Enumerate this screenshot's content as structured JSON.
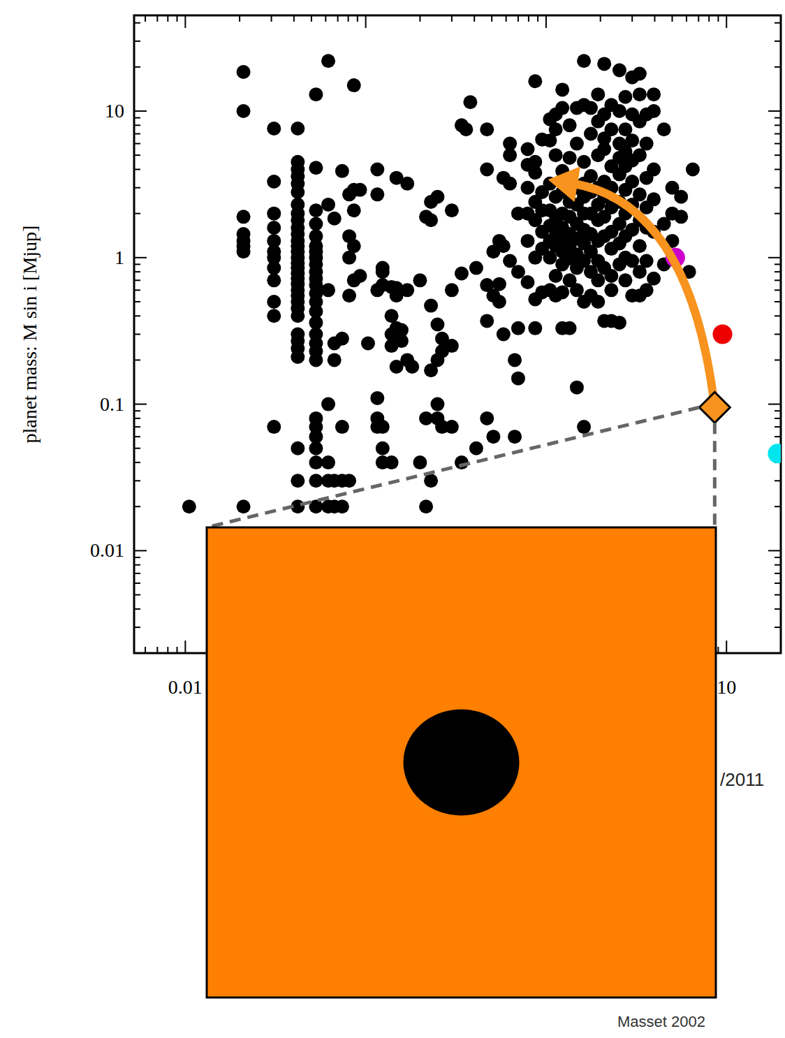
{
  "chart_data": {
    "type": "scatter",
    "y_label": "planet mass: M sin i [Mjup]",
    "log": true,
    "grid": false,
    "xlim": [
      0.0052,
      20
    ],
    "ylim": [
      0.002,
      45
    ],
    "xticks": [
      0.01,
      10
    ],
    "yticks": [
      0.01,
      0.1,
      1,
      10
    ],
    "series": [
      {
        "color": "#000000",
        "marker": "dot",
        "x": [
          0.0105,
          0.021,
          0.021,
          0.021,
          0.021,
          0.021,
          0.021,
          0.021,
          0.021,
          0.031,
          0.031,
          0.031,
          0.031,
          0.031,
          0.031,
          0.031,
          0.031,
          0.031,
          0.031,
          0.031,
          0.031,
          0.042,
          0.042,
          0.042,
          0.042,
          0.042,
          0.042,
          0.042,
          0.042,
          0.042,
          0.042,
          0.042,
          0.042,
          0.042,
          0.042,
          0.042,
          0.042,
          0.042,
          0.042,
          0.042,
          0.042,
          0.042,
          0.042,
          0.042,
          0.042,
          0.042,
          0.042,
          0.042,
          0.042,
          0.042,
          0.042,
          0.042,
          0.042,
          0.053,
          0.053,
          0.053,
          0.053,
          0.053,
          0.053,
          0.053,
          0.053,
          0.053,
          0.053,
          0.053,
          0.053,
          0.053,
          0.053,
          0.053,
          0.053,
          0.053,
          0.053,
          0.053,
          0.053,
          0.053,
          0.053,
          0.053,
          0.053,
          0.053,
          0.053,
          0.053,
          0.062,
          0.062,
          0.062,
          0.062,
          0.062,
          0.062,
          0.062,
          0.067,
          0.067,
          0.067,
          0.067,
          0.067,
          0.074,
          0.074,
          0.074,
          0.074,
          0.074,
          0.081,
          0.081,
          0.081,
          0.081,
          0.081,
          0.086,
          0.086,
          0.086,
          0.086,
          0.086,
          0.093,
          0.093,
          0.103,
          0.116,
          0.116,
          0.116,
          0.116,
          0.116,
          0.116,
          0.124,
          0.124,
          0.124,
          0.124,
          0.124,
          0.124,
          0.139,
          0.139,
          0.139,
          0.139,
          0.139,
          0.148,
          0.148,
          0.148,
          0.148,
          0.148,
          0.158,
          0.158,
          0.17,
          0.17,
          0.17,
          0.181,
          0.2,
          0.2,
          0.216,
          0.216,
          0.216,
          0.23,
          0.23,
          0.23,
          0.23,
          0.23,
          0.25,
          0.25,
          0.25,
          0.25,
          0.25,
          0.265,
          0.265,
          0.265,
          0.3,
          0.3,
          0.3,
          0.3,
          0.34,
          0.34,
          0.34,
          0.36,
          0.38,
          0.41,
          0.41,
          0.47,
          0.47,
          0.47,
          0.47,
          0.47,
          0.51,
          0.51,
          0.51,
          0.55,
          0.55,
          0.55,
          0.58,
          0.58,
          0.58,
          0.63,
          0.63,
          0.63,
          0.63,
          0.67,
          0.67,
          0.7,
          0.7,
          0.7,
          0.7,
          0.79,
          0.79,
          0.79,
          0.79,
          0.79,
          0.79,
          0.87,
          0.87,
          0.87,
          0.87,
          0.87,
          0.87,
          0.87,
          0.87,
          0.95,
          0.95,
          0.95,
          0.95,
          0.95,
          0.95,
          1.05,
          1.05,
          1.05,
          1.05,
          1.05,
          1.05,
          1.05,
          1.05,
          1.13,
          1.13,
          1.13,
          1.13,
          1.13,
          1.13,
          1.13,
          1.13,
          1.13,
          1.23,
          1.23,
          1.23,
          1.23,
          1.23,
          1.23,
          1.23,
          1.23,
          1.23,
          1.23,
          1.23,
          1.35,
          1.35,
          1.35,
          1.35,
          1.35,
          1.35,
          1.35,
          1.35,
          1.35,
          1.35,
          1.48,
          1.48,
          1.48,
          1.48,
          1.48,
          1.48,
          1.48,
          1.48,
          1.48,
          1.48,
          1.62,
          1.62,
          1.62,
          1.62,
          1.62,
          1.62,
          1.62,
          1.62,
          1.62,
          1.62,
          1.62,
          1.77,
          1.77,
          1.77,
          1.77,
          1.77,
          1.77,
          1.77,
          1.77,
          1.77,
          1.94,
          1.94,
          1.94,
          1.94,
          1.94,
          1.94,
          1.94,
          1.94,
          1.94,
          1.94,
          2.1,
          2.1,
          2.1,
          2.1,
          2.1,
          2.1,
          2.1,
          2.1,
          2.1,
          2.1,
          2.3,
          2.3,
          2.3,
          2.3,
          2.3,
          2.3,
          2.3,
          2.3,
          2.3,
          2.3,
          2.55,
          2.55,
          2.55,
          2.55,
          2.55,
          2.55,
          2.55,
          2.55,
          2.55,
          2.55,
          2.75,
          2.75,
          2.75,
          2.75,
          2.75,
          2.75,
          2.75,
          2.75,
          2.75,
          3,
          3,
          3,
          3,
          3,
          3,
          3,
          3,
          3,
          3.3,
          3.3,
          3.3,
          3.3,
          3.3,
          3.3,
          3.3,
          3.3,
          3.3,
          3.6,
          3.6,
          3.6,
          3.6,
          3.6,
          3.6,
          3.6,
          3.95,
          3.95,
          3.95,
          3.95,
          3.95,
          3.95,
          4.5,
          4.5,
          4.5,
          5,
          5,
          5,
          5.6,
          5.6,
          6.2,
          6.5
        ],
        "values": [
          0.02,
          18.5,
          10,
          1.9,
          1.45,
          1.3,
          1.2,
          1.1,
          0.02,
          7.6,
          3.3,
          2,
          1.6,
          1.3,
          1.1,
          1,
          0.85,
          0.7,
          0.5,
          0.4,
          0.07,
          7.6,
          4.5,
          4,
          3.6,
          3.2,
          2.8,
          2.3,
          2,
          1.8,
          1.6,
          1.45,
          1.3,
          1.2,
          1.1,
          1,
          0.92,
          0.85,
          0.78,
          0.72,
          0.66,
          0.6,
          0.55,
          0.5,
          0.45,
          0.4,
          0.3,
          0.27,
          0.24,
          0.21,
          0.05,
          0.03,
          0.02,
          13,
          4.1,
          2.1,
          1.7,
          1.4,
          1.2,
          1.1,
          1,
          0.9,
          0.8,
          0.72,
          0.65,
          0.57,
          0.5,
          0.43,
          0.36,
          0.3,
          0.26,
          0.23,
          0.2,
          0.08,
          0.07,
          0.06,
          0.05,
          0.04,
          0.03,
          0.02,
          22,
          2.3,
          0.6,
          0.1,
          0.04,
          0.03,
          0.02,
          1.85,
          0.26,
          0.2,
          0.03,
          0.02,
          3.9,
          0.28,
          0.07,
          0.03,
          0.02,
          2.7,
          1.4,
          1,
          0.55,
          0.03,
          15,
          2.9,
          2.1,
          1.2,
          0.7,
          2.9,
          0.75,
          0.26,
          4,
          2.7,
          0.6,
          0.11,
          0.08,
          0.07,
          0.85,
          0.8,
          0.65,
          0.07,
          0.05,
          0.04,
          0.63,
          0.4,
          0.3,
          0.25,
          0.04,
          3.5,
          0.62,
          0.55,
          0.33,
          0.18,
          0.32,
          0.27,
          3.2,
          0.6,
          0.2,
          0.18,
          0.04,
          0.7,
          1.9,
          0.08,
          0.02,
          2.4,
          1.8,
          0.47,
          0.17,
          0.03,
          2.6,
          0.35,
          0.2,
          0.1,
          0.08,
          0.07,
          0.28,
          0.23,
          2.1,
          0.6,
          0.25,
          0.07,
          8,
          0.78,
          0.04,
          7.5,
          11.5,
          0.05,
          0.85,
          7.5,
          4,
          0.65,
          0.37,
          0.08,
          1.1,
          0.55,
          0.06,
          1.3,
          0.66,
          0.5,
          3.5,
          1.2,
          0.3,
          6,
          5,
          3.2,
          0.95,
          0.06,
          0.2,
          0.33,
          0.15,
          0.8,
          2,
          5.5,
          4.3,
          3,
          2,
          1.3,
          0.68,
          16,
          4.5,
          3.8,
          2.4,
          1.8,
          1,
          0.52,
          0.33,
          6.4,
          2.8,
          2.1,
          1.5,
          1.15,
          0.58,
          8.8,
          6.3,
          3.2,
          2.1,
          1.65,
          1.3,
          1,
          0.6,
          9.5,
          7.5,
          5,
          2.6,
          1.8,
          1.4,
          1.2,
          0.75,
          0.55,
          14,
          10.5,
          3.9,
          2.8,
          2,
          1.6,
          1.3,
          1.1,
          0.9,
          0.58,
          0.33,
          8,
          4.8,
          3.4,
          2.4,
          1.9,
          1.45,
          1.2,
          0.99,
          0.7,
          0.33,
          10.5,
          6,
          3,
          2.3,
          1.7,
          1.35,
          1.05,
          0.85,
          0.6,
          0.13,
          22,
          11,
          4.5,
          3.2,
          2.6,
          2,
          1.55,
          1.25,
          0.95,
          0.5,
          0.07,
          10.5,
          7,
          3.6,
          2.8,
          2,
          1.45,
          1.1,
          0.8,
          0.55,
          13,
          8.5,
          5,
          3,
          2.3,
          1.8,
          1.3,
          0.95,
          0.7,
          0.5,
          21,
          9.5,
          6.5,
          5.5,
          3.3,
          2.6,
          1.9,
          1.4,
          0.85,
          0.37,
          11,
          7.5,
          4.2,
          3,
          2.2,
          1.5,
          1.15,
          0.75,
          0.6,
          0.37,
          19,
          10,
          6,
          4.8,
          3.7,
          2.4,
          1.7,
          1.25,
          0.9,
          0.36,
          12.5,
          7.5,
          5.3,
          4.2,
          2.9,
          2,
          1.4,
          1,
          0.7,
          17,
          9.5,
          6.3,
          4.6,
          3.3,
          2.3,
          1.55,
          0.95,
          0.55,
          18,
          13,
          8.5,
          5,
          2.7,
          1.8,
          1.2,
          0.8,
          0.55,
          9.5,
          6,
          3.5,
          2.2,
          1.6,
          0.95,
          0.6,
          13,
          10,
          4,
          2.5,
          1.5,
          0.72,
          7.5,
          1.7,
          0.9,
          3,
          2,
          1.3,
          2.6,
          1.9,
          0.8,
          4
        ]
      },
      {
        "color": "#cc00cc",
        "marker": "circle",
        "x": [
          5.2
        ],
        "values": [
          1
        ]
      },
      {
        "color": "#ee0000",
        "marker": "circle",
        "x": [
          9.5
        ],
        "values": [
          0.3
        ]
      },
      {
        "color": "#00e5ee",
        "marker": "circle",
        "x": [
          19.2
        ],
        "values": [
          0.046
        ]
      },
      {
        "color": "#f7931e",
        "marker": "diamond",
        "x": [
          8.6
        ],
        "values": [
          0.095
        ]
      }
    ],
    "arrow": {
      "color": "#f7931e",
      "x": [
        8.6,
        1.04
      ],
      "y": [
        0.095,
        3.4
      ]
    },
    "annotations": [
      {
        "text": "/2011"
      },
      {
        "text": "Masset 2002"
      }
    ]
  }
}
